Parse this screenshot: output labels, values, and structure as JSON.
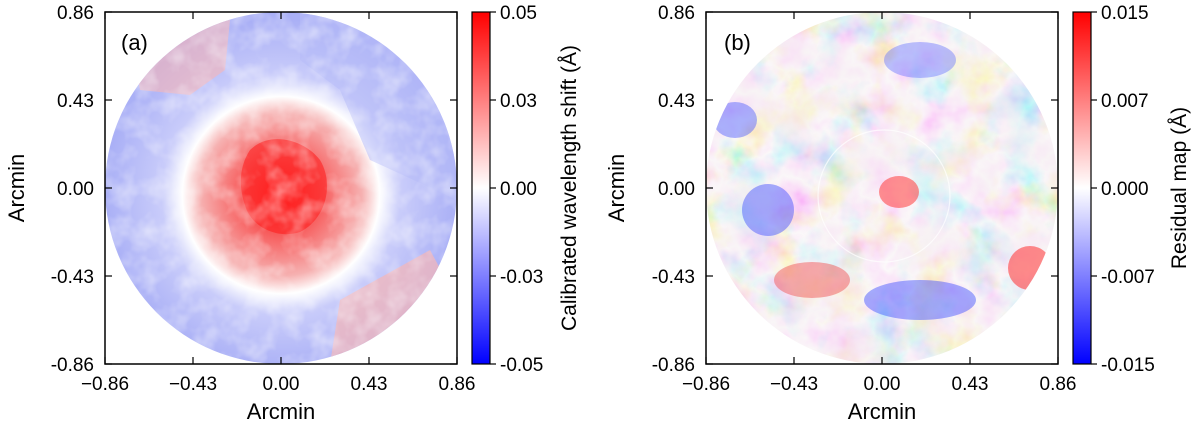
{
  "chart_data": [
    {
      "type": "heatmap",
      "panel_label": "(a)",
      "xlabel": "Arcmin",
      "ylabel": "Arcmin",
      "xlim": [
        -0.86,
        0.86
      ],
      "ylim": [
        -0.86,
        0.86
      ],
      "x_ticks": [
        "−0.86",
        "−0.43",
        "0.00",
        "0.43",
        "0.86"
      ],
      "y_ticks": [
        "0.86",
        "0.43",
        "0.00",
        "-0.43",
        "-0.86"
      ],
      "colorbar": {
        "label": "Calibrated wavelength shift (Å)",
        "range": [
          -0.05,
          0.05
        ],
        "ticks": [
          "0.05",
          "0.03",
          "0.00",
          "-0.03",
          "-0.05"
        ],
        "colormap": "bwr"
      },
      "description_values": {
        "center_value": 0.045,
        "inner_ring_value": 0.02,
        "outer_ring_value": -0.02
      }
    },
    {
      "type": "heatmap",
      "panel_label": "(b)",
      "xlabel": "Arcmin",
      "ylabel": "Arcmin",
      "xlim": [
        -0.86,
        0.86
      ],
      "ylim": [
        -0.86,
        0.86
      ],
      "x_ticks": [
        "−0.86",
        "−0.43",
        "0.00",
        "0.43",
        "0.86"
      ],
      "y_ticks": [
        "0.86",
        "0.43",
        "0.00",
        "-0.43",
        "-0.86"
      ],
      "colorbar": {
        "label": "Residual map (Å)",
        "range": [
          -0.015,
          0.015
        ],
        "ticks": [
          "0.015",
          "0.007",
          "0.000",
          "-0.007",
          "-0.015"
        ],
        "colormap": "bwr"
      }
    }
  ],
  "colors": {
    "low": "#0000ff",
    "mid": "#ffffff",
    "high": "#ff0000"
  }
}
